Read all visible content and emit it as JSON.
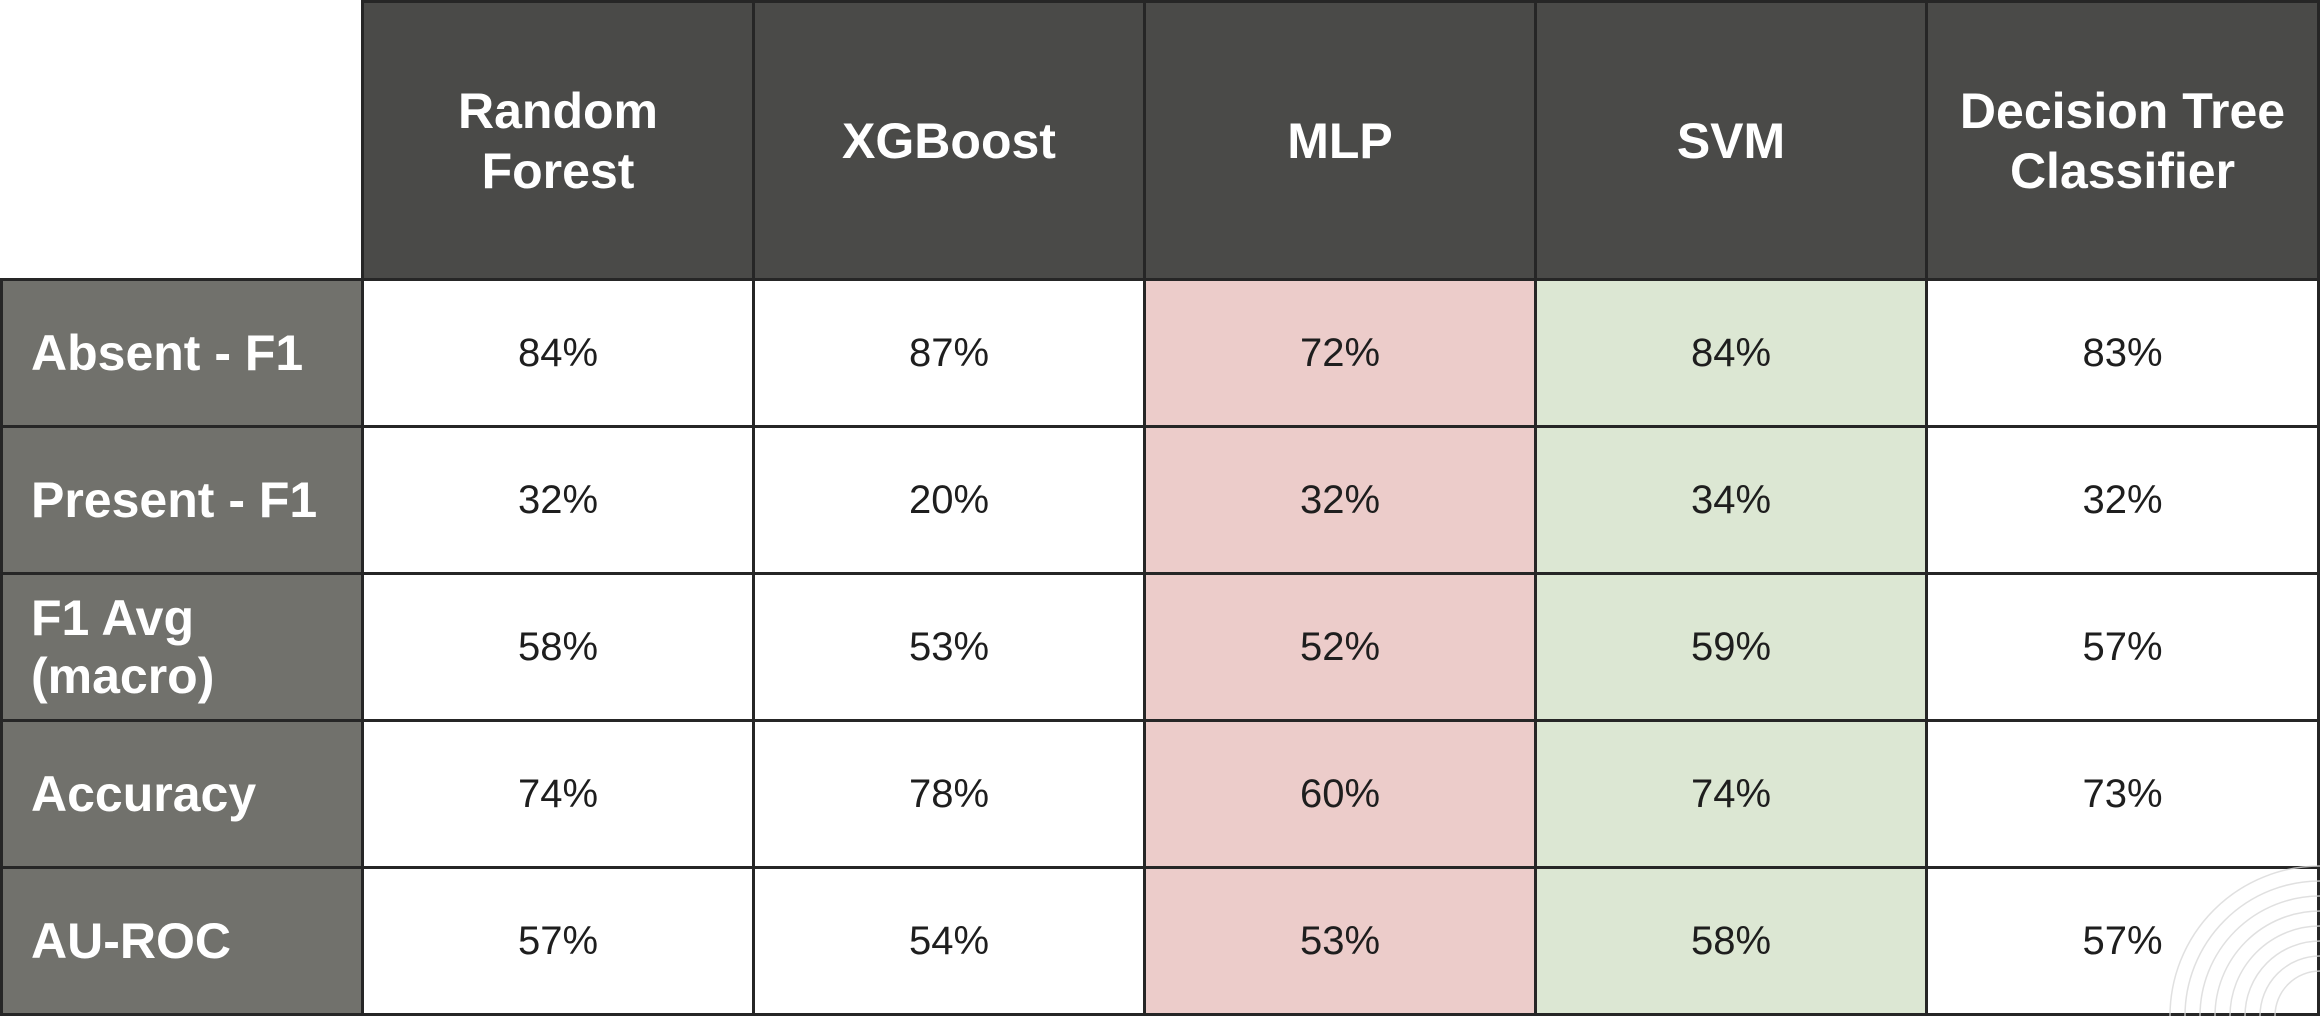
{
  "colors": {
    "header_bg": "#4a4a48",
    "row_header_bg": "#71716c",
    "cell_bg": "#ffffff",
    "highlight_worst": "#ecccca",
    "highlight_best": "#dce7d3",
    "border": "#262626"
  },
  "chart_data": {
    "type": "table",
    "columns": [
      {
        "label": "Random\nForest",
        "highlight": ""
      },
      {
        "label": "XGBoost",
        "highlight": ""
      },
      {
        "label": "MLP",
        "highlight": "worst"
      },
      {
        "label": "SVM",
        "highlight": "best"
      },
      {
        "label": "Decision Tree\nClassifier",
        "highlight": ""
      }
    ],
    "rows": [
      {
        "label": "Absent - F1",
        "values": [
          "84%",
          "87%",
          "72%",
          "84%",
          "83%"
        ]
      },
      {
        "label": "Present - F1",
        "values": [
          "32%",
          "20%",
          "32%",
          "34%",
          "32%"
        ]
      },
      {
        "label": "F1 Avg\n(macro)",
        "values": [
          "58%",
          "53%",
          "52%",
          "59%",
          "57%"
        ]
      },
      {
        "label": "Accuracy",
        "values": [
          "74%",
          "78%",
          "60%",
          "74%",
          "73%"
        ]
      },
      {
        "label": "AU-ROC",
        "values": [
          "57%",
          "54%",
          "53%",
          "58%",
          "57%"
        ]
      }
    ]
  }
}
